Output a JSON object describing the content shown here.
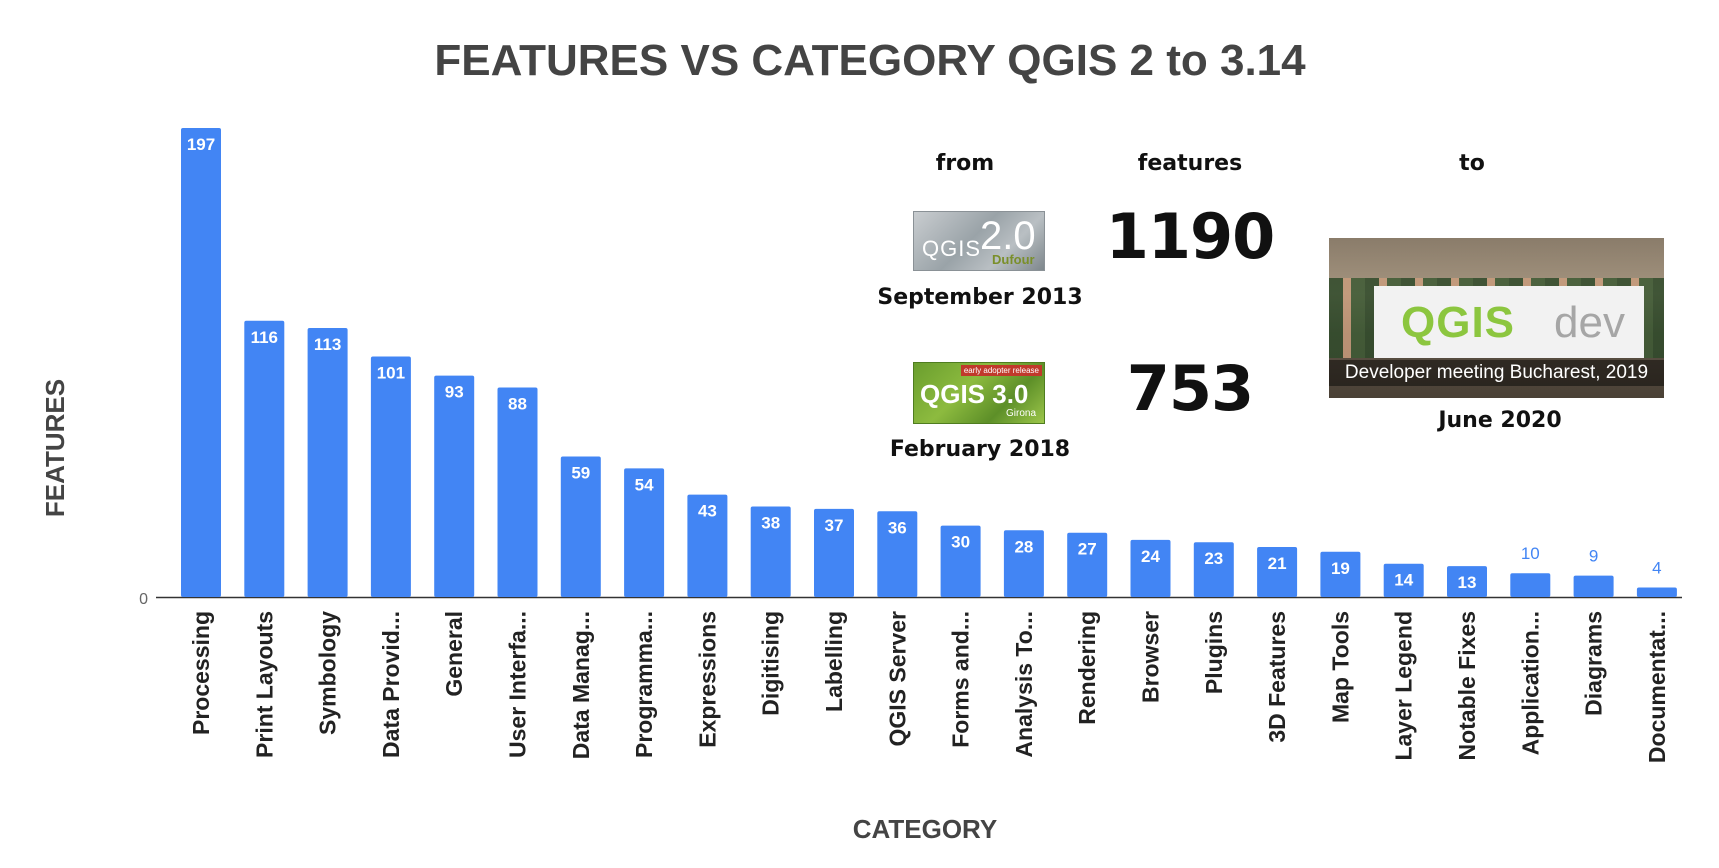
{
  "chart_data": {
    "type": "bar",
    "title": "FEATURES VS CATEGORY QGIS 2 to 3.14",
    "xlabel": "CATEGORY",
    "ylabel": "FEATURES",
    "ylim": [
      0,
      200
    ],
    "y_ticks": [
      "0"
    ],
    "grid": false,
    "bar_color": "#4285f4",
    "categories": [
      "Processing",
      "Print Layouts",
      "Symbology",
      "Data Provid...",
      "General",
      "User Interfa...",
      "Data Manag...",
      "Programma...",
      "Expressions",
      "Digitising",
      "Labelling",
      "QGIS Server",
      "Forms and...",
      "Analysis To...",
      "Rendering",
      "Browser",
      "Plugins",
      "3D Features",
      "Map Tools",
      "Layer Legend",
      "Notable Fixes",
      "Application...",
      "Diagrams",
      "Documentat..."
    ],
    "values": [
      197,
      116,
      113,
      101,
      93,
      88,
      59,
      54,
      43,
      38,
      37,
      36,
      30,
      28,
      27,
      24,
      23,
      21,
      19,
      14,
      13,
      10,
      9,
      4
    ]
  },
  "info": {
    "from_label": "from",
    "features_label": "features",
    "to_label": "to",
    "release_2": {
      "logo_text": "QGIS",
      "logo_version": "2.0",
      "logo_name": "Dufour",
      "date": "September 2013",
      "features": "1190"
    },
    "release_3": {
      "logo_badge": "early adopter release",
      "logo_text": "QGIS 3.0",
      "logo_name": "Girona",
      "date": "February 2018",
      "features": "753"
    },
    "latest": {
      "banner_qgis": "QGIS",
      "banner_dev": "dev",
      "caption": "Developer meeting Bucharest, 2019",
      "date": "June 2020"
    }
  }
}
